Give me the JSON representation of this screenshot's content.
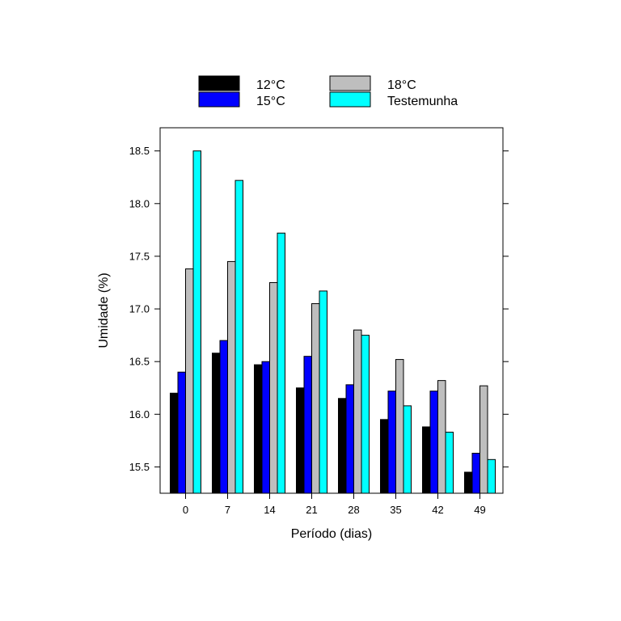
{
  "chart_data": {
    "type": "bar",
    "title": "",
    "xlabel": "Período (dias)",
    "ylabel": "Umidade (%)",
    "categories": [
      "0",
      "7",
      "14",
      "21",
      "28",
      "35",
      "42",
      "49"
    ],
    "series": [
      {
        "name": "12°C",
        "color": "#000000",
        "values": [
          16.2,
          16.58,
          16.47,
          16.25,
          16.15,
          15.95,
          15.88,
          15.45
        ]
      },
      {
        "name": "15°C",
        "color": "#0000FF",
        "values": [
          16.4,
          16.7,
          16.5,
          16.55,
          16.28,
          16.22,
          16.22,
          15.63
        ]
      },
      {
        "name": "18°C",
        "color": "#BEBEBE",
        "values": [
          17.38,
          17.45,
          17.25,
          17.05,
          16.8,
          16.52,
          16.32,
          16.27
        ]
      },
      {
        "name": "Testemunha",
        "color": "#00FFFF",
        "values": [
          18.5,
          18.22,
          17.72,
          17.17,
          16.75,
          16.08,
          15.83,
          15.57
        ]
      }
    ],
    "ylim": [
      15.25,
      18.72
    ],
    "yticks": [
      "15.5",
      "16.0",
      "16.5",
      "17.0",
      "17.5",
      "18.0",
      "18.5"
    ],
    "legend_position": "top-center",
    "grid": false
  }
}
